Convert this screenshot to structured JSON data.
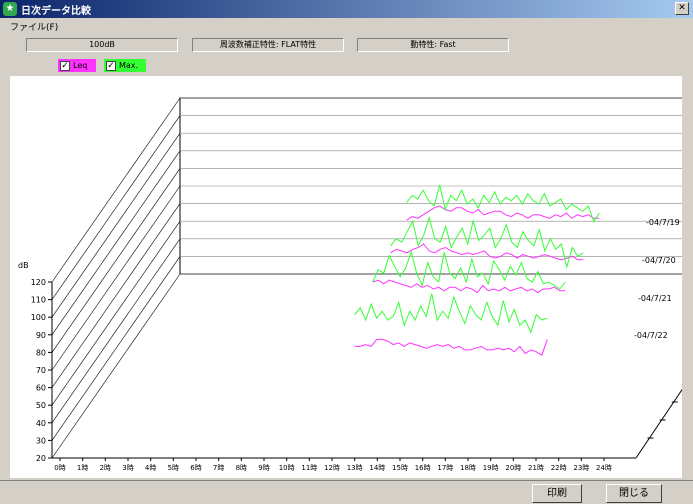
{
  "window": {
    "title": "日次データ比較",
    "icon": "app-icon"
  },
  "menu": {
    "file": "ファイル(F)"
  },
  "info": {
    "level": "100dB",
    "weighting": "周波数補正特性: FLAT特性",
    "dynamics": "動特性: Fast"
  },
  "legend": {
    "leq": {
      "label": "Leq",
      "checked": true,
      "color": "#ff33ff"
    },
    "max": {
      "label": "Max.",
      "checked": true,
      "color": "#33ff33"
    }
  },
  "buttons": {
    "print": "印刷",
    "close": "閉じる"
  },
  "chart_data": {
    "type": "line",
    "ylabel": "dB",
    "yticks": [
      "120",
      "110",
      "100",
      "90",
      "80",
      "70",
      "60",
      "50",
      "40",
      "30",
      "20"
    ],
    "xticks": [
      "0時",
      "1時",
      "2時",
      "3時",
      "4時",
      "5時",
      "6時",
      "7時",
      "8時",
      "9時",
      "10時",
      "11時",
      "12時",
      "13時",
      "14時",
      "15時",
      "16時",
      "17時",
      "18時",
      "19時",
      "20時",
      "21時",
      "22時",
      "23時",
      "24時"
    ],
    "dates": [
      "04/7/19",
      "04/7/20",
      "04/7/21",
      "04/7/22"
    ],
    "hours_range": [
      13,
      21.5
    ],
    "series": [
      {
        "name": "Leq",
        "days": [
          [
            80,
            80,
            81,
            80,
            84,
            84,
            83,
            81,
            82,
            80,
            82,
            81,
            80,
            79,
            80,
            81,
            80,
            81,
            79,
            80,
            78,
            78,
            79,
            80,
            78,
            78,
            79,
            78,
            79,
            77,
            80,
            76,
            78,
            77,
            75,
            84
          ],
          [
            95,
            96,
            94,
            96,
            95,
            94,
            93,
            92,
            94,
            92,
            93,
            91,
            92,
            90,
            92,
            92,
            90,
            92,
            91,
            89,
            93,
            90,
            91,
            90,
            92,
            90,
            91,
            92,
            90,
            91,
            89,
            91,
            91,
            92,
            90,
            90
          ],
          [
            90,
            92,
            91,
            90,
            92,
            93,
            95,
            91,
            90,
            92,
            93,
            91,
            90,
            89,
            90,
            89,
            90,
            91,
            88,
            87,
            88,
            90,
            89,
            87,
            89,
            88,
            87,
            88,
            89,
            88,
            87,
            86,
            87,
            88,
            86,
            86
          ],
          [
            87,
            89,
            88,
            90,
            92,
            94,
            95,
            93,
            92,
            94,
            94,
            92,
            91,
            93,
            90,
            91,
            92,
            92,
            90,
            89,
            91,
            90,
            88,
            90,
            90,
            89,
            88,
            90,
            89,
            91,
            88,
            90,
            89,
            90,
            88,
            88
          ]
        ]
      },
      {
        "name": "Max.",
        "days": [
          [
            98,
            102,
            95,
            104,
            96,
            100,
            95,
            97,
            105,
            92,
            100,
            95,
            103,
            97,
            110,
            95,
            100,
            96,
            108,
            100,
            93,
            103,
            98,
            95,
            105,
            97,
            92,
            106,
            94,
            101,
            92,
            95,
            88,
            98,
            95,
            96
          ],
          [
            95,
            102,
            100,
            110,
            104,
            98,
            103,
            112,
            100,
            93,
            106,
            98,
            95,
            112,
            100,
            97,
            103,
            95,
            108,
            98,
            100,
            94,
            107,
            102,
            96,
            104,
            99,
            106,
            97,
            95,
            101,
            94,
            95,
            93,
            91,
            95
          ],
          [
            94,
            98,
            96,
            102,
            108,
            94,
            100,
            110,
            98,
            96,
            105,
            93,
            99,
            104,
            95,
            108,
            97,
            100,
            104,
            93,
            98,
            106,
            96,
            93,
            102,
            97,
            94,
            103,
            91,
            98,
            92,
            95,
            82,
            93,
            88,
            90
          ],
          [
            97,
            101,
            99,
            104,
            98,
            95,
            107,
            93,
            101,
            98,
            104,
            96,
            99,
            94,
            101,
            97,
            103,
            96,
            100,
            98,
            101,
            96,
            102,
            98,
            96,
            102,
            95,
            97,
            99,
            93,
            96,
            94,
            92,
            95,
            86,
            91
          ]
        ]
      }
    ]
  }
}
